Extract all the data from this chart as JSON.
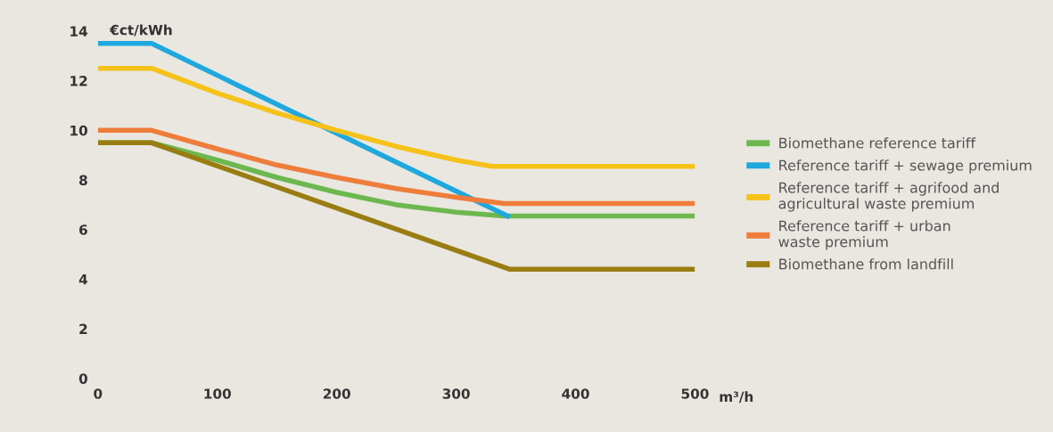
{
  "chart_data": {
    "type": "line",
    "xlabel": "m³/h",
    "ylabel": "€ct/kWh",
    "xlim": [
      0,
      500
    ],
    "ylim": [
      0,
      14
    ],
    "xticks": [
      0,
      100,
      200,
      300,
      400,
      500
    ],
    "yticks": [
      0,
      2,
      4,
      6,
      8,
      10,
      12,
      14
    ],
    "grid": false,
    "legend": "right",
    "marker": "none",
    "line_style": "solid",
    "series": [
      {
        "name": "Biomethane reference tariff",
        "color": "#6cb84f",
        "x": [
          0,
          45,
          100,
          150,
          200,
          250,
          300,
          340,
          500
        ],
        "values": [
          9.5,
          9.5,
          8.8,
          8.1,
          7.5,
          7.0,
          6.7,
          6.55,
          6.55
        ]
      },
      {
        "name": "Reference tariff + sewage premium",
        "color": "#1ea8de",
        "x": [
          0,
          45,
          345
        ],
        "values": [
          13.5,
          13.5,
          6.5
        ]
      },
      {
        "name": "Reference tariff + agrifood and\nagricultural waste premium",
        "color": "#f6c21a",
        "x": [
          0,
          45,
          100,
          150,
          200,
          250,
          300,
          330,
          500
        ],
        "values": [
          12.5,
          12.5,
          11.5,
          10.7,
          10.0,
          9.35,
          8.8,
          8.55,
          8.55
        ]
      },
      {
        "name": "Reference tariff + urban\nwaste premium",
        "color": "#ee7d3b",
        "x": [
          0,
          45,
          100,
          150,
          200,
          250,
          300,
          340,
          500
        ],
        "values": [
          10,
          10,
          9.25,
          8.6,
          8.1,
          7.65,
          7.3,
          7.05,
          7.05
        ]
      },
      {
        "name": "Biomethane from landfill",
        "color": "#9a7d12",
        "x": [
          0,
          45,
          345,
          500
        ],
        "values": [
          9.5,
          9.5,
          4.4,
          4.4
        ]
      }
    ]
  }
}
